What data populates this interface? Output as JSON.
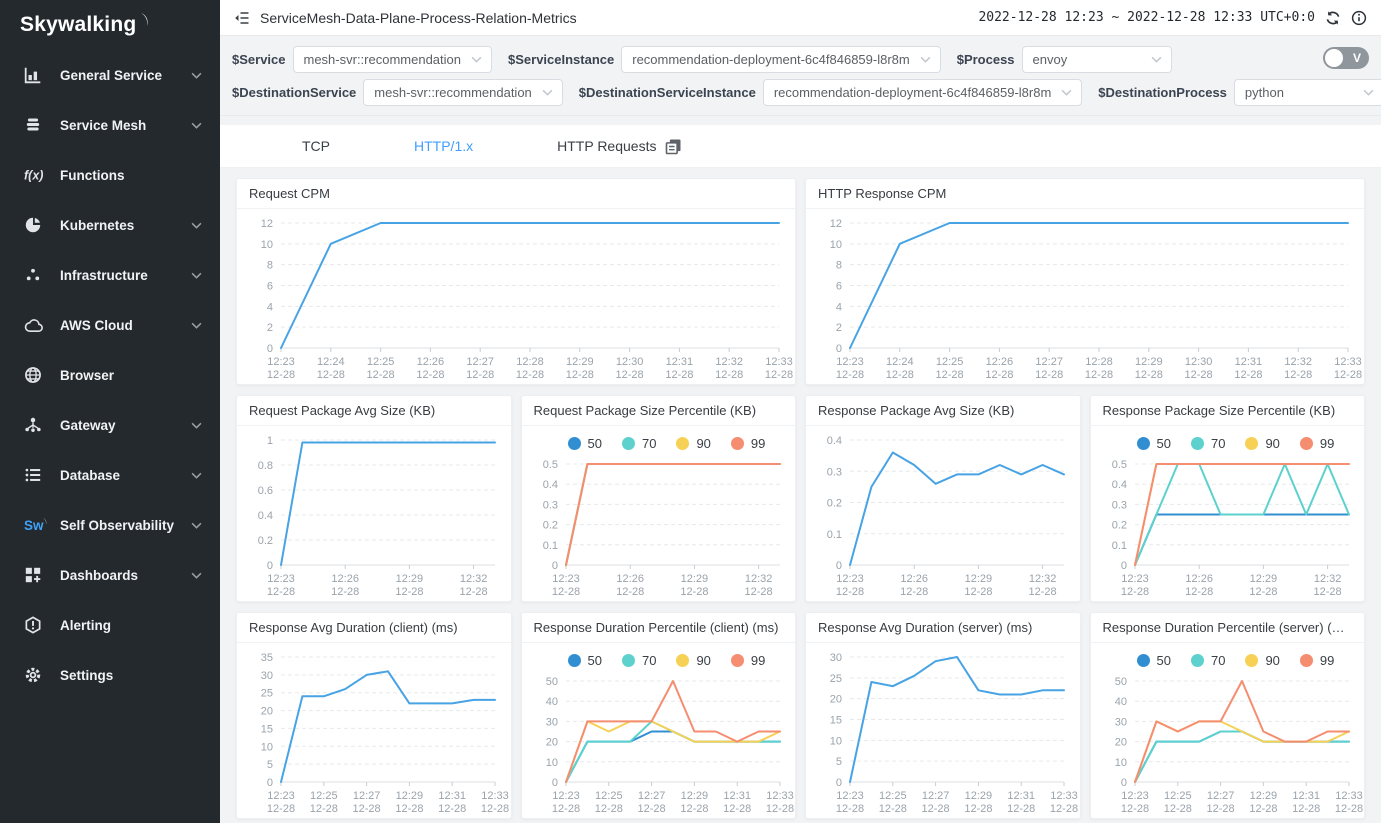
{
  "sidebar": {
    "logo": "Skywalking",
    "items": [
      {
        "label": "General Service",
        "icon": "bar-chart-icon",
        "expandable": true
      },
      {
        "label": "Service Mesh",
        "icon": "layers-icon",
        "expandable": true
      },
      {
        "label": "Functions",
        "icon": "function-icon",
        "expandable": false
      },
      {
        "label": "Kubernetes",
        "icon": "kubernetes-icon",
        "expandable": true
      },
      {
        "label": "Infrastructure",
        "icon": "dots-icon",
        "expandable": true
      },
      {
        "label": "AWS Cloud",
        "icon": "cloud-icon",
        "expandable": true
      },
      {
        "label": "Browser",
        "icon": "globe-icon",
        "expandable": false
      },
      {
        "label": "Gateway",
        "icon": "gateway-icon",
        "expandable": true
      },
      {
        "label": "Database",
        "icon": "database-icon",
        "expandable": true
      },
      {
        "label": "Self Observability",
        "icon": "sw-icon",
        "expandable": true
      },
      {
        "label": "Dashboards",
        "icon": "dashboard-icon",
        "expandable": true
      },
      {
        "label": "Alerting",
        "icon": "alert-icon",
        "expandable": false
      },
      {
        "label": "Settings",
        "icon": "gear-icon",
        "expandable": false
      }
    ]
  },
  "header": {
    "title": "ServiceMesh-Data-Plane-Process-Relation-Metrics",
    "time_range": "2022-12-28 12:23 ~ 2022-12-28 12:33",
    "timezone": "UTC+0:0"
  },
  "filters": {
    "row1": [
      {
        "label": "$Service",
        "value": "mesh-svr::recommendation"
      },
      {
        "label": "$ServiceInstance",
        "value": "recommendation-deployment-6c4f846859-l8r8m"
      },
      {
        "label": "$Process",
        "value": "envoy"
      }
    ],
    "row2": [
      {
        "label": "$DestinationService",
        "value": "mesh-svr::recommendation"
      },
      {
        "label": "$DestinationServiceInstance",
        "value": "recommendation-deployment-6c4f846859-l8r8m"
      },
      {
        "label": "$DestinationProcess",
        "value": "python"
      }
    ],
    "toggle_label": "V"
  },
  "tabs": [
    {
      "label": "TCP",
      "active": false
    },
    {
      "label": "HTTP/1.x",
      "active": true
    },
    {
      "label": "HTTP Requests",
      "active": false,
      "icon": "copy-icon"
    }
  ],
  "colors": {
    "accent": "#409eff",
    "line_blue": "#47a3e4",
    "p50": "#318fd1",
    "p70": "#5cd1cd",
    "p90": "#f6d155",
    "p99": "#f58d70",
    "sidebar_bg": "#24292e"
  },
  "chart_data": [
    {
      "type": "line",
      "title": "Request CPM",
      "x": [
        "12:23",
        "12:24",
        "12:25",
        "12:26",
        "12:27",
        "12:28",
        "12:29",
        "12:30",
        "12:31",
        "12:32",
        "12:33"
      ],
      "x_sub": "12-28",
      "x_tick_step": 1,
      "ylim": [
        0,
        12
      ],
      "yticks": [
        0,
        2,
        4,
        6,
        8,
        10,
        12
      ],
      "series": [
        {
          "name": "",
          "color": "#47a3e4",
          "values": [
            0,
            10,
            12,
            12,
            12,
            12,
            12,
            12,
            12,
            12,
            12
          ]
        }
      ]
    },
    {
      "type": "line",
      "title": "HTTP Response CPM",
      "x": [
        "12:23",
        "12:24",
        "12:25",
        "12:26",
        "12:27",
        "12:28",
        "12:29",
        "12:30",
        "12:31",
        "12:32",
        "12:33"
      ],
      "x_sub": "12-28",
      "x_tick_step": 1,
      "ylim": [
        0,
        12
      ],
      "yticks": [
        0,
        2,
        4,
        6,
        8,
        10,
        12
      ],
      "series": [
        {
          "name": "",
          "color": "#47a3e4",
          "values": [
            0,
            10,
            12,
            12,
            12,
            12,
            12,
            12,
            12,
            12,
            12
          ]
        }
      ]
    },
    {
      "type": "line",
      "title": "Request Package Avg Size (KB)",
      "x": [
        "12:23",
        "12:24",
        "12:25",
        "12:26",
        "12:27",
        "12:28",
        "12:29",
        "12:30",
        "12:31",
        "12:32",
        "12:33"
      ],
      "x_sub": "12-28",
      "x_tick_step": 3,
      "ylim": [
        0,
        1
      ],
      "yticks": [
        0,
        0.2,
        0.4,
        0.6,
        0.8,
        1
      ],
      "series": [
        {
          "name": "",
          "color": "#47a3e4",
          "values": [
            0,
            0.98,
            0.98,
            0.98,
            0.98,
            0.98,
            0.98,
            0.98,
            0.98,
            0.98,
            0.98
          ]
        }
      ]
    },
    {
      "type": "line",
      "title": "Request Package Size Percentile (KB)",
      "x": [
        "12:23",
        "12:24",
        "12:25",
        "12:26",
        "12:27",
        "12:28",
        "12:29",
        "12:30",
        "12:31",
        "12:32",
        "12:33"
      ],
      "x_sub": "12-28",
      "x_tick_step": 3,
      "ylim": [
        0,
        0.5
      ],
      "yticks": [
        0,
        0.1,
        0.2,
        0.3,
        0.4,
        0.5
      ],
      "series": [
        {
          "name": "50",
          "color": "#318fd1",
          "values": [
            0,
            0.5,
            0.5,
            0.5,
            0.5,
            0.5,
            0.5,
            0.5,
            0.5,
            0.5,
            0.5
          ]
        },
        {
          "name": "70",
          "color": "#5cd1cd",
          "values": [
            0,
            0.5,
            0.5,
            0.5,
            0.5,
            0.5,
            0.5,
            0.5,
            0.5,
            0.5,
            0.5
          ]
        },
        {
          "name": "90",
          "color": "#f6d155",
          "values": [
            0,
            0.5,
            0.5,
            0.5,
            0.5,
            0.5,
            0.5,
            0.5,
            0.5,
            0.5,
            0.5
          ]
        },
        {
          "name": "99",
          "color": "#f58d70",
          "values": [
            0,
            0.5,
            0.5,
            0.5,
            0.5,
            0.5,
            0.5,
            0.5,
            0.5,
            0.5,
            0.5
          ]
        }
      ]
    },
    {
      "type": "line",
      "title": "Response Package Avg Size (KB)",
      "x": [
        "12:23",
        "12:24",
        "12:25",
        "12:26",
        "12:27",
        "12:28",
        "12:29",
        "12:30",
        "12:31",
        "12:32",
        "12:33"
      ],
      "x_sub": "12-28",
      "x_tick_step": 3,
      "ylim": [
        0,
        0.4
      ],
      "yticks": [
        0,
        0.1,
        0.2,
        0.3,
        0.4
      ],
      "series": [
        {
          "name": "",
          "color": "#47a3e4",
          "values": [
            0,
            0.25,
            0.36,
            0.32,
            0.26,
            0.29,
            0.29,
            0.32,
            0.29,
            0.32,
            0.29
          ]
        }
      ]
    },
    {
      "type": "line",
      "title": "Response Package Size Percentile (KB)",
      "x": [
        "12:23",
        "12:24",
        "12:25",
        "12:26",
        "12:27",
        "12:28",
        "12:29",
        "12:30",
        "12:31",
        "12:32",
        "12:33"
      ],
      "x_sub": "12-28",
      "x_tick_step": 3,
      "ylim": [
        0,
        0.5
      ],
      "yticks": [
        0,
        0.1,
        0.2,
        0.3,
        0.4,
        0.5
      ],
      "series": [
        {
          "name": "50",
          "color": "#318fd1",
          "values": [
            0,
            0.25,
            0.25,
            0.25,
            0.25,
            0.25,
            0.25,
            0.25,
            0.25,
            0.25,
            0.25
          ]
        },
        {
          "name": "70",
          "color": "#5cd1cd",
          "values": [
            0,
            0.25,
            0.5,
            0.5,
            0.25,
            0.25,
            0.25,
            0.5,
            0.25,
            0.5,
            0.25
          ]
        },
        {
          "name": "90",
          "color": "#f6d155",
          "values": [
            0,
            0.5,
            0.5,
            0.5,
            0.5,
            0.5,
            0.5,
            0.5,
            0.5,
            0.5,
            0.5
          ]
        },
        {
          "name": "99",
          "color": "#f58d70",
          "values": [
            0,
            0.5,
            0.5,
            0.5,
            0.5,
            0.5,
            0.5,
            0.5,
            0.5,
            0.5,
            0.5
          ]
        }
      ]
    },
    {
      "type": "line",
      "title": "Response Avg Duration (client) (ms)",
      "x": [
        "12:23",
        "12:24",
        "12:25",
        "12:26",
        "12:27",
        "12:28",
        "12:29",
        "12:30",
        "12:31",
        "12:32",
        "12:33"
      ],
      "x_sub": "12-28",
      "x_tick_step": 2,
      "ylim": [
        0,
        35
      ],
      "yticks": [
        0,
        5,
        10,
        15,
        20,
        25,
        30,
        35
      ],
      "series": [
        {
          "name": "",
          "color": "#47a3e4",
          "values": [
            0,
            24,
            24,
            26,
            30,
            31,
            22,
            22,
            22,
            23,
            23
          ]
        }
      ]
    },
    {
      "type": "line",
      "title": "Response Duration Percentile (client) (ms)",
      "x": [
        "12:23",
        "12:24",
        "12:25",
        "12:26",
        "12:27",
        "12:28",
        "12:29",
        "12:30",
        "12:31",
        "12:32",
        "12:33"
      ],
      "x_sub": "12-28",
      "x_tick_step": 2,
      "ylim": [
        0,
        50
      ],
      "yticks": [
        0,
        10,
        20,
        30,
        40,
        50
      ],
      "series": [
        {
          "name": "50",
          "color": "#318fd1",
          "values": [
            0,
            20,
            20,
            20,
            25,
            25,
            20,
            20,
            20,
            20,
            20
          ]
        },
        {
          "name": "70",
          "color": "#5cd1cd",
          "values": [
            0,
            20,
            20,
            20,
            30,
            25,
            20,
            20,
            20,
            20,
            20
          ]
        },
        {
          "name": "90",
          "color": "#f6d155",
          "values": [
            0,
            30,
            25,
            30,
            30,
            25,
            20,
            20,
            20,
            20,
            25
          ]
        },
        {
          "name": "99",
          "color": "#f58d70",
          "values": [
            0,
            30,
            30,
            30,
            30,
            50,
            25,
            25,
            20,
            25,
            25
          ]
        }
      ]
    },
    {
      "type": "line",
      "title": "Response Avg Duration (server) (ms)",
      "x": [
        "12:23",
        "12:24",
        "12:25",
        "12:26",
        "12:27",
        "12:28",
        "12:29",
        "12:30",
        "12:31",
        "12:32",
        "12:33"
      ],
      "x_sub": "12-28",
      "x_tick_step": 2,
      "ylim": [
        0,
        30
      ],
      "yticks": [
        0,
        5,
        10,
        15,
        20,
        25,
        30
      ],
      "series": [
        {
          "name": "",
          "color": "#47a3e4",
          "values": [
            0,
            24,
            23,
            25.5,
            29,
            30,
            22,
            21,
            21,
            22,
            22
          ]
        }
      ]
    },
    {
      "type": "line",
      "title": "Response Duration Percentile (server) (ms)",
      "x": [
        "12:23",
        "12:24",
        "12:25",
        "12:26",
        "12:27",
        "12:28",
        "12:29",
        "12:30",
        "12:31",
        "12:32",
        "12:33"
      ],
      "x_sub": "12-28",
      "x_tick_step": 2,
      "ylim": [
        0,
        50
      ],
      "yticks": [
        0,
        10,
        20,
        30,
        40,
        50
      ],
      "series": [
        {
          "name": "50",
          "color": "#318fd1",
          "values": [
            0,
            20,
            20,
            20,
            25,
            25,
            20,
            20,
            20,
            20,
            20
          ]
        },
        {
          "name": "70",
          "color": "#5cd1cd",
          "values": [
            0,
            20,
            20,
            20,
            25,
            25,
            20,
            20,
            20,
            20,
            20
          ]
        },
        {
          "name": "90",
          "color": "#f6d155",
          "values": [
            0,
            30,
            25,
            30,
            30,
            25,
            20,
            20,
            20,
            20,
            25
          ]
        },
        {
          "name": "99",
          "color": "#f58d70",
          "values": [
            0,
            30,
            25,
            30,
            30,
            50,
            25,
            20,
            20,
            25,
            25
          ]
        }
      ]
    }
  ]
}
